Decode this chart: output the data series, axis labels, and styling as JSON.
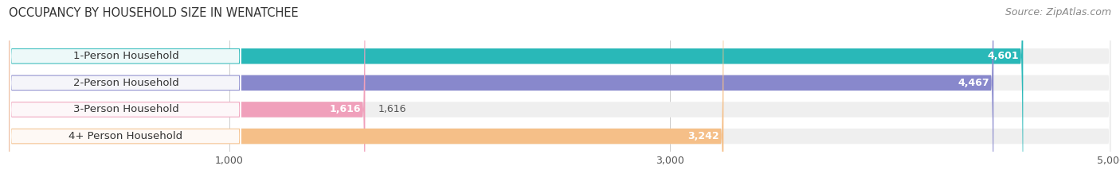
{
  "title": "OCCUPANCY BY HOUSEHOLD SIZE IN WENATCHEE",
  "source": "Source: ZipAtlas.com",
  "categories": [
    "1-Person Household",
    "2-Person Household",
    "3-Person Household",
    "4+ Person Household"
  ],
  "values": [
    4601,
    4467,
    1616,
    3242
  ],
  "bar_colors": [
    "#29b8b8",
    "#8888cc",
    "#f0a0bb",
    "#f5bf88"
  ],
  "xlim": [
    0,
    5000
  ],
  "xticks": [
    1000,
    3000,
    5000
  ],
  "xticklabels": [
    "1,000",
    "3,000",
    "5,000"
  ],
  "value_label_color": "#555555",
  "title_color": "#333333",
  "source_color": "#888888",
  "background_color": "#ffffff",
  "bar_background_color": "#efefef",
  "title_fontsize": 10.5,
  "source_fontsize": 9,
  "tick_fontsize": 9,
  "bar_label_fontsize": 9,
  "category_fontsize": 9.5,
  "bar_height": 0.58,
  "bar_spacing": 1.0
}
